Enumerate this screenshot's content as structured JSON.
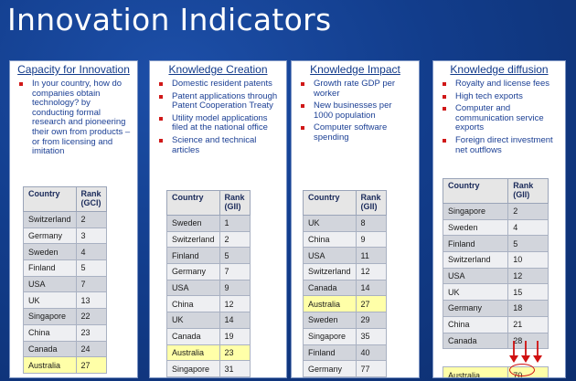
{
  "title": "Innovation Indicators",
  "panels": [
    {
      "title": "Capacity for Innovation",
      "bullets": [
        "In your country, how do companies obtain technology? by conducting formal research and pioneering their own from products – or from licensing and imitation"
      ],
      "col_country": "Country",
      "col_rank": "Rank (GCI)",
      "rows": [
        {
          "country": "Switzerland",
          "rank": "2"
        },
        {
          "country": "Germany",
          "rank": "3"
        },
        {
          "country": "Sweden",
          "rank": "4"
        },
        {
          "country": "Finland",
          "rank": "5"
        },
        {
          "country": "USA",
          "rank": "7"
        },
        {
          "country": "UK",
          "rank": "13"
        },
        {
          "country": "Singapore",
          "rank": "22"
        },
        {
          "country": "China",
          "rank": "23"
        },
        {
          "country": "Canada",
          "rank": "24"
        },
        {
          "country": "Australia",
          "rank": "27"
        }
      ]
    },
    {
      "title": "Knowledge Creation",
      "bullets": [
        "Domestic resident patents",
        "Patent applications through Patent Cooperation Treaty",
        "Utility model applications filed at the national office",
        "Science and technical articles"
      ],
      "col_country": "Country",
      "col_rank": "Rank (GII)",
      "rows": [
        {
          "country": "Sweden",
          "rank": "1"
        },
        {
          "country": "Switzerland",
          "rank": "2"
        },
        {
          "country": "Finland",
          "rank": "5"
        },
        {
          "country": "Germany",
          "rank": "7"
        },
        {
          "country": "USA",
          "rank": "9"
        },
        {
          "country": "China",
          "rank": "12"
        },
        {
          "country": "UK",
          "rank": "14"
        },
        {
          "country": "Canada",
          "rank": "19"
        },
        {
          "country": "Australia",
          "rank": "23"
        },
        {
          "country": "Singapore",
          "rank": "31"
        }
      ]
    },
    {
      "title": "Knowledge Impact",
      "bullets": [
        "Growth rate GDP per worker",
        "New businesses per 1000 population",
        "Computer software spending"
      ],
      "col_country": "Country",
      "col_rank": "Rank (GII)",
      "rows": [
        {
          "country": "UK",
          "rank": "8"
        },
        {
          "country": "China",
          "rank": "9"
        },
        {
          "country": "USA",
          "rank": "11"
        },
        {
          "country": "Switzerland",
          "rank": "12"
        },
        {
          "country": "Canada",
          "rank": "14"
        },
        {
          "country": "Australia",
          "rank": "27"
        },
        {
          "country": "Sweden",
          "rank": "29"
        },
        {
          "country": "Singapore",
          "rank": "35"
        },
        {
          "country": "Finland",
          "rank": "40"
        },
        {
          "country": "Germany",
          "rank": "77"
        }
      ]
    },
    {
      "title": "Knowledge diffusion",
      "bullets": [
        "Royalty and license fees",
        "High tech exports",
        "Computer and communication service exports",
        "Foreign direct investment net outflows"
      ],
      "col_country": "Country",
      "col_rank": "Rank (GII)",
      "rows": [
        {
          "country": "Singapore",
          "rank": "2"
        },
        {
          "country": "Sweden",
          "rank": "4"
        },
        {
          "country": "Finland",
          "rank": "5"
        },
        {
          "country": "Switzerland",
          "rank": "10"
        },
        {
          "country": "USA",
          "rank": "12"
        },
        {
          "country": "UK",
          "rank": "15"
        },
        {
          "country": "Germany",
          "rank": "18"
        },
        {
          "country": "China",
          "rank": "21"
        },
        {
          "country": "Canada",
          "rank": "28"
        },
        {
          "country": "Australia",
          "rank": "70"
        }
      ]
    }
  ],
  "highlight_country": "Australia",
  "colors": {
    "highlight": "#ffffa8",
    "annotation": "#d01010",
    "bullet": "#d01818"
  }
}
